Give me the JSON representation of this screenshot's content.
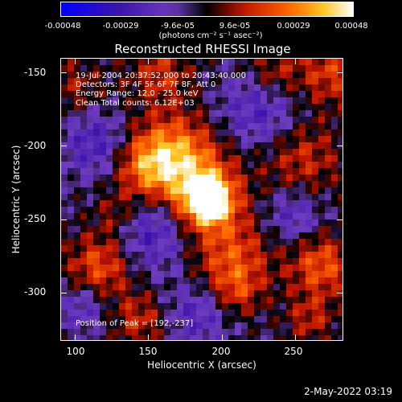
{
  "colorbar": {
    "ticks": [
      "-0.00048",
      "-0.00029",
      "-9.6e-05",
      "9.6e-05",
      "0.00029",
      "0.00048"
    ],
    "units": "(photons cm⁻² s⁻¹ asec⁻²)",
    "range": [
      -0.00048,
      0.00048
    ]
  },
  "chart_data": {
    "type": "heatmap",
    "title": "Reconstructed RHESSI Image",
    "xlabel": "Heliocentric X (arcsec)",
    "ylabel": "Heliocentric Y (arcsec)",
    "xlim": [
      90,
      283
    ],
    "ylim": [
      -333,
      -140
    ],
    "xticks": [
      "100",
      "150",
      "200",
      "250"
    ],
    "yticks": [
      "-150",
      "-200",
      "-250",
      "-300"
    ],
    "peak": [
      192,
      -237
    ],
    "info": {
      "time": "19-Jul-2004 20:37:52.000 to 20:43:40.000",
      "detectors": "Detectors: 3F 4F 5F 6F 7F 8F, Att 0",
      "energy": "Energy Range: 12.0 - 25.0 keV",
      "clean": "Clean     Total counts: 6.12E+03"
    },
    "peak_label": "Position of Peak = [192,-237]"
  },
  "footer": {
    "date": "2-May-2022 03:19"
  }
}
